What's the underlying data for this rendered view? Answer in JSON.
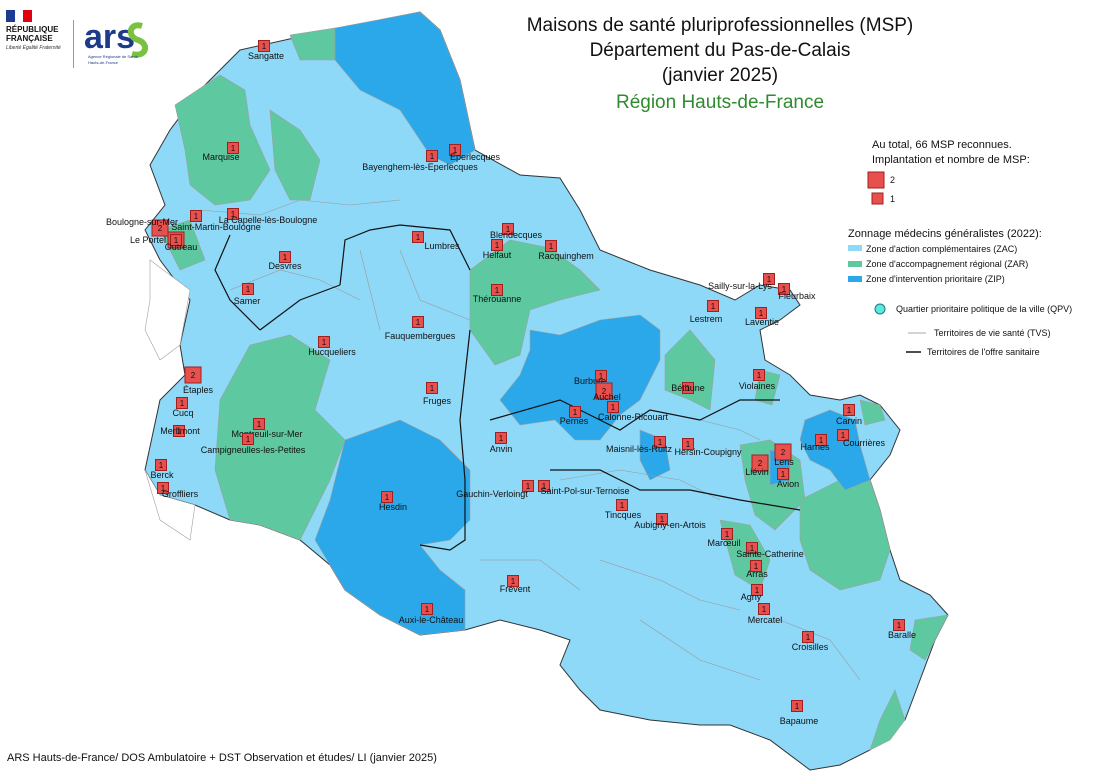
{
  "header": {
    "title_line1": "Maisons de santé pluriprofessionnelles (MSP)",
    "title_line2": "Département du Pas-de-Calais",
    "title_line3": "(janvier 2025)",
    "region": "Région Hauts-de-France"
  },
  "logos": {
    "rf_text_1": "RÉPUBLIQUE",
    "rf_text_2": "FRANÇAISE",
    "rf_motto": "Liberté Égalité Fraternité",
    "ars_word": "ars",
    "ars_sub_1": "Agence Régionale de Santé",
    "ars_sub_2": "Hauts-de-France"
  },
  "legend": {
    "total_line1": "Au total, 66 MSP reconnues.",
    "total_line2": "Implantation et nombre de MSP:",
    "size_2": "2",
    "size_1": "1",
    "zonage_title": "Zonnage médecins généralistes (2022):",
    "zones": [
      {
        "label": "Zone d'action complémentaires (ZAC)",
        "color": "#8ed8f8"
      },
      {
        "label": "Zone d'accompagnement régional (ZAR)",
        "color": "#5ec8a0"
      },
      {
        "label": "Zone d'intervention prioritaire (ZIP)",
        "color": "#2aa8ea"
      }
    ],
    "qpv": "Quartier prioritaire politique de la ville (QPV)",
    "tvs": "Territoires de vie santé (TVS)",
    "tos": "Territoires de l'offre sanitaire"
  },
  "colors": {
    "zac": "#8ed8f8",
    "zar": "#5ec8a0",
    "zip": "#2aa8ea",
    "marker": "#e8504e",
    "marker_border": "#a02020"
  },
  "footer": "ARS Hauts-de-France/ DOS Ambulatoire + DST Observation et études/ LI (janvier 2025)",
  "places": [
    {
      "name": "Sangatte",
      "n": 1
    },
    {
      "name": "Marquise",
      "n": 1
    },
    {
      "name": "Eperlecques",
      "n": 1
    },
    {
      "name": "Bayenghem-lès-Eperlecques",
      "n": 1
    },
    {
      "name": "Boulogne-sur-Mer",
      "n": 2
    },
    {
      "name": "Le Portel",
      "n": 2
    },
    {
      "name": "Outreau",
      "n": 1
    },
    {
      "name": "Saint-Martin-Boulogne",
      "n": 1
    },
    {
      "name": "La Capelle-lès-Boulogne",
      "n": 1
    },
    {
      "name": "Lumbres",
      "n": 1
    },
    {
      "name": "Blendecques",
      "n": 1
    },
    {
      "name": "Helfaut",
      "n": 1
    },
    {
      "name": "Racquinghem",
      "n": 1
    },
    {
      "name": "Desvres",
      "n": 1
    },
    {
      "name": "Samer",
      "n": 1
    },
    {
      "name": "Thérouanne",
      "n": 1
    },
    {
      "name": "Sailly-sur-la-Lys",
      "n": 1
    },
    {
      "name": "Fleurbaix",
      "n": 1
    },
    {
      "name": "Lestrem",
      "n": 1
    },
    {
      "name": "Laventie",
      "n": 1
    },
    {
      "name": "Fauquembergues",
      "n": 1
    },
    {
      "name": "Hucqueliers",
      "n": 1
    },
    {
      "name": "Étaples",
      "n": 2
    },
    {
      "name": "Cucq",
      "n": 1
    },
    {
      "name": "Merlimont",
      "n": 1
    },
    {
      "name": "Montreuil-sur-Mer",
      "n": 1
    },
    {
      "name": "Campigneulles-les-Petites",
      "n": 1
    },
    {
      "name": "Berck",
      "n": 1
    },
    {
      "name": "Groffliers",
      "n": 1
    },
    {
      "name": "Fruges",
      "n": 1
    },
    {
      "name": "Burbure",
      "n": 1
    },
    {
      "name": "Auchel",
      "n": 2
    },
    {
      "name": "Calonne-Ricouart",
      "n": 1
    },
    {
      "name": "Pernes",
      "n": 1
    },
    {
      "name": "Béthune",
      "n": 1
    },
    {
      "name": "Violaines",
      "n": 1
    },
    {
      "name": "Carvin",
      "n": 1
    },
    {
      "name": "Courrières",
      "n": 1
    },
    {
      "name": "Harnes",
      "n": 1
    },
    {
      "name": "Lens",
      "n": 2
    },
    {
      "name": "Liévin",
      "n": 2
    },
    {
      "name": "Avion",
      "n": 1
    },
    {
      "name": "Maisnil-lès-Ruitz",
      "n": 1
    },
    {
      "name": "Hersin-Coupigny",
      "n": 1
    },
    {
      "name": "Anvin",
      "n": 1
    },
    {
      "name": "Hesdin",
      "n": 1
    },
    {
      "name": "Gauchin-Verloingt",
      "n": 1
    },
    {
      "name": "Saint-Pol-sur-Ternoise",
      "n": 1
    },
    {
      "name": "Tincques",
      "n": 1
    },
    {
      "name": "Aubigny-en-Artois",
      "n": 1
    },
    {
      "name": "Marœuil",
      "n": 1
    },
    {
      "name": "Sainte-Catherine",
      "n": 1
    },
    {
      "name": "Arras",
      "n": 1
    },
    {
      "name": "Agny",
      "n": 1
    },
    {
      "name": "Mercatel",
      "n": 1
    },
    {
      "name": "Frévent",
      "n": 1
    },
    {
      "name": "Auxi-le-Château",
      "n": 1
    },
    {
      "name": "Croisilles",
      "n": 1
    },
    {
      "name": "Baralle",
      "n": 1
    },
    {
      "name": "Bapaume",
      "n": 1
    }
  ]
}
